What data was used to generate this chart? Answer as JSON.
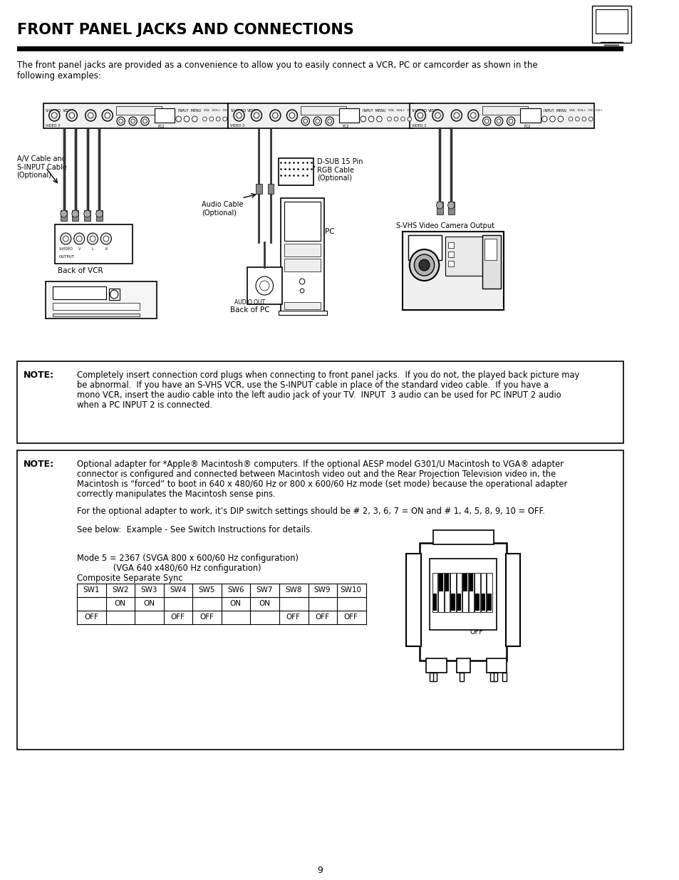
{
  "title": "FRONT PANEL JACKS AND CONNECTIONS",
  "page_number": "9",
  "bg_color": "#ffffff",
  "intro_text": "The front panel jacks are provided as a convenience to allow you to easily connect a VCR, PC or camcorder as shown in the\nfollowing examples:",
  "note1_label": "NOTE:",
  "note1_text_lines": [
    "Completely insert connection cord plugs when connecting to front panel jacks.  If you do not, the played back picture may",
    "be abnormal.  If you have an S-VHS VCR, use the S-INPUT cable in place of the standard video cable.  If you have a",
    "mono VCR, insert the audio cable into the left audio jack of your TV.  INPUT  3 audio can be used for PC INPUT 2 audio",
    "when a PC INPUT 2 is connected."
  ],
  "note2_label": "NOTE:",
  "note2_text_lines": [
    "Optional adapter for *Apple® Macintosh® computers. If the optional AESP model G301/U Macintosh to VGA® adapter",
    "connector is configured and connected between Macintosh video out and the Rear Projection Television video in, the",
    "Macintosh is “forced” to boot in 640 x 480/60 Hz or 800 x 600/60 Hz mode (set mode) because the operational adapter",
    "correctly manipulates the Macintosh sense pins."
  ],
  "note2_para2": "For the optional adapter to work, it’s DIP switch settings should be # 2, 3, 6, 7 = ON and # 1, 4, 5, 8, 9, 10 = OFF.",
  "note2_para3": "See below:  Example - See Switch Instructions for details.",
  "mode_text1": "Mode 5 = 2367 (SVGA 800 x 600/60 Hz configuration)",
  "mode_text2": "              (VGA 640 x480/60 Hz configuration)",
  "mode_text3": "Composite Separate Sync",
  "sw_headers": [
    "SW1",
    "SW2",
    "SW3",
    "SW4",
    "SW5",
    "SW6",
    "SW7",
    "SW8",
    "SW9",
    "SW10"
  ],
  "sw_row1": [
    "",
    "ON",
    "ON",
    "",
    "",
    "ON",
    "ON",
    "",
    "",
    ""
  ],
  "sw_row2": [
    "OFF",
    "",
    "",
    "OFF",
    "OFF",
    "",
    "",
    "OFF",
    "OFF",
    "OFF"
  ],
  "diagram_label_vcr": "Back of VCR",
  "diagram_label_pc": "Back of PC",
  "diagram_label_av": "A/V Cable and\nS-INPUT Cable\n(Optional)",
  "diagram_label_audio": "Audio Cable\n(Optional)",
  "diagram_label_dsub": "D-SUB 15 Pin\nRGB Cable\n(Optional)",
  "diagram_label_svhs": "S-VHS Video Camera Output",
  "audio_out_label": "AUDIO OUT"
}
